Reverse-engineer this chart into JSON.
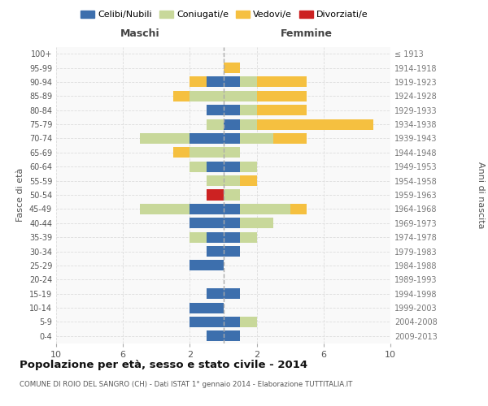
{
  "age_groups": [
    "0-4",
    "5-9",
    "10-14",
    "15-19",
    "20-24",
    "25-29",
    "30-34",
    "35-39",
    "40-44",
    "45-49",
    "50-54",
    "55-59",
    "60-64",
    "65-69",
    "70-74",
    "75-79",
    "80-84",
    "85-89",
    "90-94",
    "95-99",
    "100+"
  ],
  "birth_years": [
    "2009-2013",
    "2004-2008",
    "1999-2003",
    "1994-1998",
    "1989-1993",
    "1984-1988",
    "1979-1983",
    "1974-1978",
    "1969-1973",
    "1964-1968",
    "1959-1963",
    "1954-1958",
    "1949-1953",
    "1944-1948",
    "1939-1943",
    "1934-1938",
    "1929-1933",
    "1924-1928",
    "1919-1923",
    "1914-1918",
    "≤ 1913"
  ],
  "maschi": {
    "celibi": [
      1,
      2,
      2,
      1,
      0,
      2,
      1,
      1,
      2,
      2,
      0,
      0,
      1,
      0,
      2,
      0,
      1,
      0,
      1,
      0,
      0
    ],
    "coniugati": [
      0,
      0,
      0,
      0,
      0,
      0,
      0,
      1,
      0,
      3,
      0,
      1,
      1,
      2,
      3,
      1,
      0,
      2,
      0,
      0,
      0
    ],
    "vedovi": [
      0,
      0,
      0,
      0,
      0,
      0,
      0,
      0,
      0,
      0,
      0,
      0,
      0,
      1,
      0,
      0,
      0,
      1,
      1,
      0,
      0
    ],
    "divorziati": [
      0,
      0,
      0,
      0,
      0,
      0,
      0,
      0,
      0,
      0,
      1,
      0,
      0,
      0,
      0,
      0,
      0,
      0,
      0,
      0,
      0
    ]
  },
  "femmine": {
    "nubili": [
      1,
      1,
      0,
      1,
      0,
      0,
      1,
      1,
      1,
      1,
      0,
      0,
      1,
      0,
      1,
      1,
      1,
      0,
      1,
      0,
      0
    ],
    "coniugate": [
      0,
      1,
      0,
      0,
      0,
      0,
      0,
      1,
      2,
      3,
      1,
      1,
      1,
      1,
      2,
      1,
      1,
      2,
      1,
      0,
      0
    ],
    "vedove": [
      0,
      0,
      0,
      0,
      0,
      0,
      0,
      0,
      0,
      1,
      0,
      1,
      0,
      0,
      2,
      7,
      3,
      3,
      3,
      1,
      0
    ],
    "divorziate": [
      0,
      0,
      0,
      0,
      0,
      0,
      0,
      0,
      0,
      0,
      0,
      0,
      0,
      0,
      0,
      0,
      0,
      0,
      0,
      0,
      0
    ]
  },
  "colors": {
    "celibi_nubili": "#3d6fad",
    "coniugati": "#c8d89a",
    "vedovi": "#f5c040",
    "divorziati": "#cc2222"
  },
  "xlim": 10,
  "title": "Popolazione per età, sesso e stato civile - 2014",
  "subtitle": "COMUNE DI ROIO DEL SANGRO (CH) - Dati ISTAT 1° gennaio 2014 - Elaborazione TUTTITALIA.IT",
  "ylabel_left": "Fasce di età",
  "ylabel_right": "Anni di nascita",
  "xticks": [
    -10,
    -6,
    -2,
    2,
    6,
    10
  ],
  "bg_color": "#f9f9f9",
  "grid_color": "#dddddd"
}
